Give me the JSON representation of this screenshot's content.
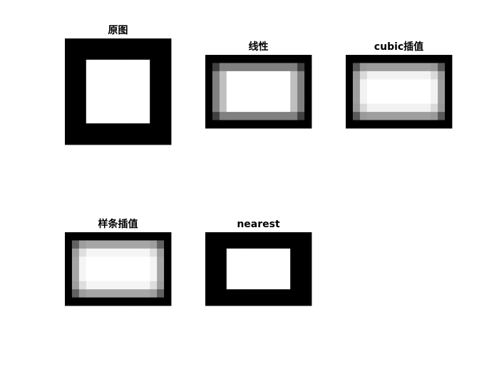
{
  "chart_data": [
    {
      "type": "heatmap",
      "title": "原图",
      "colormap": "gray",
      "values": [
        [
          0,
          0,
          0,
          0,
          0,
          0,
          0,
          0,
          0,
          0
        ],
        [
          0,
          0,
          0,
          0,
          0,
          0,
          0,
          0,
          0,
          0
        ],
        [
          0,
          0,
          1,
          1,
          1,
          1,
          1,
          1,
          0,
          0
        ],
        [
          0,
          0,
          1,
          1,
          1,
          1,
          1,
          1,
          0,
          0
        ],
        [
          0,
          0,
          1,
          1,
          1,
          1,
          1,
          1,
          0,
          0
        ],
        [
          0,
          0,
          1,
          1,
          1,
          1,
          1,
          1,
          0,
          0
        ],
        [
          0,
          0,
          1,
          1,
          1,
          1,
          1,
          1,
          0,
          0
        ],
        [
          0,
          0,
          1,
          1,
          1,
          1,
          1,
          1,
          0,
          0
        ],
        [
          0,
          0,
          0,
          0,
          0,
          0,
          0,
          0,
          0,
          0
        ],
        [
          0,
          0,
          0,
          0,
          0,
          0,
          0,
          0,
          0,
          0
        ]
      ]
    },
    {
      "type": "heatmap",
      "title": "线性",
      "colormap": "gray",
      "values": [
        [
          0,
          0,
          0,
          0,
          0,
          0,
          0,
          0,
          0,
          0,
          0,
          0,
          0,
          0,
          0
        ],
        [
          0,
          0.25,
          0.5,
          0.5,
          0.5,
          0.5,
          0.5,
          0.5,
          0.5,
          0.5,
          0.5,
          0.5,
          0.5,
          0.25,
          0
        ],
        [
          0,
          0.5,
          0.75,
          1,
          1,
          1,
          1,
          1,
          1,
          1,
          1,
          1,
          0.75,
          0.5,
          0
        ],
        [
          0,
          0.5,
          0.75,
          1,
          1,
          1,
          1,
          1,
          1,
          1,
          1,
          1,
          0.75,
          0.5,
          0
        ],
        [
          0,
          0.5,
          0.75,
          1,
          1,
          1,
          1,
          1,
          1,
          1,
          1,
          1,
          0.75,
          0.5,
          0
        ],
        [
          0,
          0.5,
          0.75,
          1,
          1,
          1,
          1,
          1,
          1,
          1,
          1,
          1,
          0.75,
          0.5,
          0
        ],
        [
          0,
          0.5,
          0.75,
          1,
          1,
          1,
          1,
          1,
          1,
          1,
          1,
          1,
          0.75,
          0.5,
          0
        ],
        [
          0,
          0.25,
          0.5,
          0.5,
          0.5,
          0.5,
          0.5,
          0.5,
          0.5,
          0.5,
          0.5,
          0.5,
          0.5,
          0.25,
          0
        ],
        [
          0,
          0,
          0,
          0,
          0,
          0,
          0,
          0,
          0,
          0,
          0,
          0,
          0,
          0,
          0
        ]
      ]
    },
    {
      "type": "heatmap",
      "title": "cubic插值",
      "colormap": "gray",
      "values": [
        [
          0,
          0,
          0,
          0,
          0,
          0,
          0,
          0,
          0,
          0,
          0,
          0,
          0,
          0,
          0
        ],
        [
          0,
          0.35,
          0.6,
          0.62,
          0.62,
          0.62,
          0.62,
          0.62,
          0.62,
          0.62,
          0.62,
          0.62,
          0.6,
          0.35,
          0
        ],
        [
          0,
          0.6,
          0.85,
          0.95,
          0.95,
          0.95,
          0.95,
          0.95,
          0.95,
          0.95,
          0.95,
          0.95,
          0.85,
          0.6,
          0
        ],
        [
          0,
          0.62,
          0.95,
          1,
          1,
          1,
          1,
          1,
          1,
          1,
          1,
          1,
          0.95,
          0.62,
          0
        ],
        [
          0,
          0.62,
          0.95,
          1,
          1,
          1,
          1,
          1,
          1,
          1,
          1,
          1,
          0.95,
          0.62,
          0
        ],
        [
          0,
          0.62,
          0.95,
          1,
          1,
          1,
          1,
          1,
          1,
          1,
          1,
          1,
          0.95,
          0.62,
          0
        ],
        [
          0,
          0.6,
          0.85,
          0.95,
          0.95,
          0.95,
          0.95,
          0.95,
          0.95,
          0.95,
          0.95,
          0.95,
          0.85,
          0.6,
          0
        ],
        [
          0,
          0.35,
          0.6,
          0.62,
          0.62,
          0.62,
          0.62,
          0.62,
          0.62,
          0.62,
          0.62,
          0.62,
          0.6,
          0.35,
          0
        ],
        [
          0,
          0,
          0,
          0,
          0,
          0,
          0,
          0,
          0,
          0,
          0,
          0,
          0,
          0,
          0
        ]
      ]
    },
    {
      "type": "heatmap",
      "title": "样条插值",
      "colormap": "gray",
      "values": [
        [
          0,
          0,
          0,
          0,
          0,
          0,
          0,
          0,
          0,
          0,
          0,
          0,
          0,
          0,
          0
        ],
        [
          0,
          0.38,
          0.62,
          0.65,
          0.65,
          0.65,
          0.65,
          0.65,
          0.65,
          0.65,
          0.65,
          0.65,
          0.62,
          0.38,
          0
        ],
        [
          0,
          0.62,
          0.87,
          0.96,
          0.96,
          0.96,
          0.96,
          0.96,
          0.96,
          0.96,
          0.96,
          0.96,
          0.87,
          0.62,
          0
        ],
        [
          0,
          0.65,
          0.96,
          1,
          1,
          1,
          1,
          1,
          1,
          1,
          1,
          1,
          0.96,
          0.65,
          0
        ],
        [
          0,
          0.65,
          0.96,
          1,
          1,
          1,
          1,
          1,
          1,
          1,
          1,
          1,
          0.96,
          0.65,
          0
        ],
        [
          0,
          0.65,
          0.96,
          1,
          1,
          1,
          1,
          1,
          1,
          1,
          1,
          1,
          0.96,
          0.65,
          0
        ],
        [
          0,
          0.62,
          0.87,
          0.96,
          0.96,
          0.96,
          0.96,
          0.96,
          0.96,
          0.96,
          0.96,
          0.96,
          0.87,
          0.62,
          0
        ],
        [
          0,
          0.38,
          0.62,
          0.65,
          0.65,
          0.65,
          0.65,
          0.65,
          0.65,
          0.65,
          0.65,
          0.65,
          0.62,
          0.38,
          0
        ],
        [
          0,
          0,
          0,
          0,
          0,
          0,
          0,
          0,
          0,
          0,
          0,
          0,
          0,
          0,
          0
        ]
      ]
    },
    {
      "type": "heatmap",
      "title": "nearest",
      "colormap": "gray",
      "values": [
        [
          0,
          0,
          0,
          0,
          0,
          0,
          0,
          0,
          0,
          0,
          0,
          0,
          0,
          0,
          0
        ],
        [
          0,
          0,
          0,
          0,
          0,
          0,
          0,
          0,
          0,
          0,
          0,
          0,
          0,
          0,
          0
        ],
        [
          0,
          0,
          0,
          1,
          1,
          1,
          1,
          1,
          1,
          1,
          1,
          1,
          0,
          0,
          0
        ],
        [
          0,
          0,
          0,
          1,
          1,
          1,
          1,
          1,
          1,
          1,
          1,
          1,
          0,
          0,
          0
        ],
        [
          0,
          0,
          0,
          1,
          1,
          1,
          1,
          1,
          1,
          1,
          1,
          1,
          0,
          0,
          0
        ],
        [
          0,
          0,
          0,
          1,
          1,
          1,
          1,
          1,
          1,
          1,
          1,
          1,
          0,
          0,
          0
        ],
        [
          0,
          0,
          0,
          1,
          1,
          1,
          1,
          1,
          1,
          1,
          1,
          1,
          0,
          0,
          0
        ],
        [
          0,
          0,
          0,
          0,
          0,
          0,
          0,
          0,
          0,
          0,
          0,
          0,
          0,
          0,
          0
        ],
        [
          0,
          0,
          0,
          0,
          0,
          0,
          0,
          0,
          0,
          0,
          0,
          0,
          0,
          0,
          0
        ]
      ]
    }
  ]
}
